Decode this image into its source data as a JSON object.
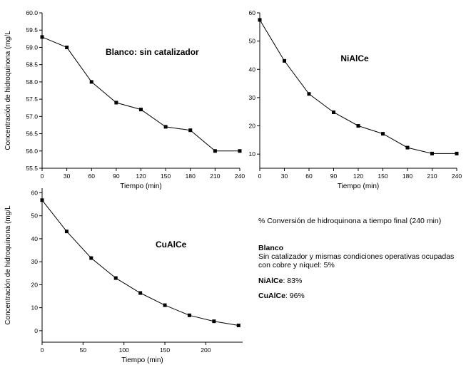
{
  "chart_data": [
    {
      "type": "line",
      "annotation": "Blanco: sin catalizador",
      "xlabel": "Tiempo (min)",
      "ylabel": "Concentración de hidroquinona (mg/L",
      "xlim": [
        0,
        240
      ],
      "ylim": [
        55.5,
        60.0
      ],
      "xticks": [
        0,
        30,
        60,
        90,
        120,
        150,
        180,
        210,
        240
      ],
      "yticks": [
        55.5,
        56.0,
        56.5,
        57.0,
        57.5,
        58.0,
        58.5,
        59.0,
        59.5,
        60.0
      ],
      "ytick_labels": [
        "55.5",
        "56.0",
        "56.5",
        "57.0",
        "57.5",
        "58.0",
        "58.5",
        "59.0",
        "59.5",
        "60.0"
      ],
      "series": [
        {
          "x": [
            0,
            30,
            60,
            90,
            120,
            150,
            180,
            210,
            240
          ],
          "y": [
            59.3,
            59.0,
            58.0,
            57.4,
            57.2,
            56.7,
            56.6,
            56.0,
            56.0
          ]
        }
      ],
      "grid": false,
      "legend": "none"
    },
    {
      "type": "line",
      "annotation": "NiAlCe",
      "xlabel": "Tiempo (min)",
      "ylabel": "",
      "xlim": [
        0,
        240
      ],
      "ylim": [
        5,
        60
      ],
      "xticks": [
        0,
        30,
        60,
        90,
        120,
        150,
        180,
        210,
        240
      ],
      "yticks": [
        10,
        20,
        30,
        40,
        50,
        60
      ],
      "ytick_labels": [
        "10",
        "20",
        "30",
        "40",
        "50",
        "60"
      ],
      "series": [
        {
          "x": [
            0,
            30,
            60,
            90,
            120,
            150,
            180,
            210,
            240
          ],
          "y": [
            57.5,
            43.0,
            31.3,
            24.8,
            20.0,
            17.2,
            12.3,
            10.2,
            10.2
          ]
        }
      ],
      "grid": false,
      "legend": "none"
    },
    {
      "type": "line",
      "annotation": "CuAlCe",
      "xlabel": "Tiempo (min)",
      "ylabel": "Concentración de hidroquinona (mg/L",
      "xlim": [
        0,
        245
      ],
      "ylim": [
        -5,
        62
      ],
      "xticks": [
        0,
        50,
        100,
        150,
        200
      ],
      "yticks": [
        0,
        10,
        20,
        30,
        40,
        50,
        60
      ],
      "ytick_labels": [
        "0",
        "10",
        "20",
        "30",
        "40",
        "50",
        "60"
      ],
      "series": [
        {
          "x": [
            0,
            30,
            60,
            90,
            120,
            150,
            180,
            210,
            240
          ],
          "y": [
            56.8,
            43.2,
            31.6,
            22.9,
            16.4,
            11.1,
            6.7,
            4.1,
            2.3
          ]
        }
      ],
      "grid": false,
      "legend": "none"
    }
  ],
  "notes": {
    "heading": "% Conversión de hidroquinona a tiempo final (240 min)",
    "blanco_label": "Blanco",
    "blanco_line1": "Sin catalizador y mismas condiciones operativas ocupadas",
    "blanco_line2": "con cobre y níquel: 5%",
    "ni_label": "NiAlCe",
    "ni_value": ": 83%",
    "cu_label": "CuAlCe",
    "cu_value": ": 96%"
  }
}
